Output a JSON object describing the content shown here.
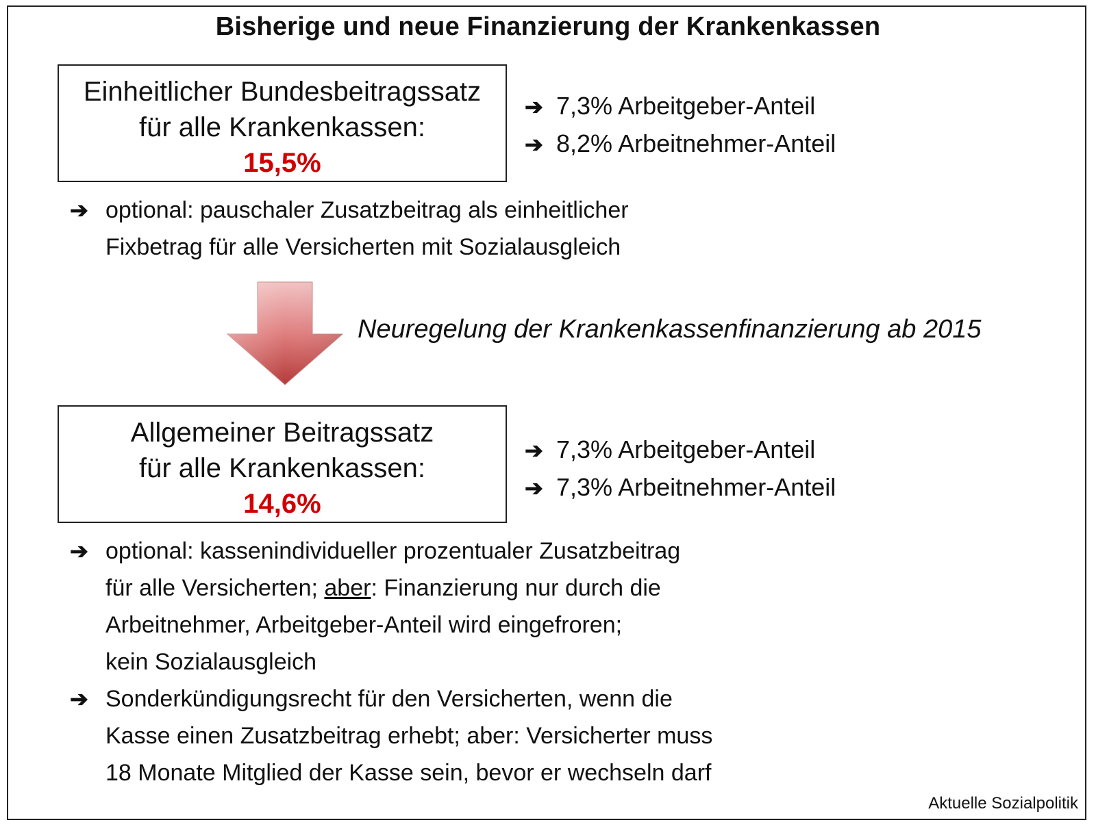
{
  "title": "Bisherige und neue Finanzierung der Krankenkassen",
  "old": {
    "box_line1": "Einheitlicher Bundesbeitragssatz",
    "box_line2": "für alle Krankenkassen:",
    "rate": "15,5%",
    "employer_share": "7,3% Arbeitgeber-Anteil",
    "employee_share": "8,2% Arbeitnehmer-Anteil",
    "note_line1": "optional: pauschaler Zusatzbeitrag als einheitlicher",
    "note_line2": "Fixbetrag für alle Versicherten mit Sozialausgleich"
  },
  "transition_label": "Neuregelung der Krankenkassenfinanzierung ab 2015",
  "new": {
    "box_line1": "Allgemeiner Beitragssatz",
    "box_line2": "für alle Krankenkassen:",
    "rate": "14,6%",
    "employer_share": "7,3% Arbeitgeber-Anteil",
    "employee_share": "7,3% Arbeitnehmer-Anteil",
    "note1_line1": "optional: kassenindividueller prozentualer Zusatzbeitrag",
    "note1_line2_pre": "für alle Versicherten; ",
    "note1_line2_underlined": "aber",
    "note1_line2_post": ": Finanzierung nur durch die",
    "note1_line3": "Arbeitnehmer, Arbeitgeber-Anteil wird eingefroren;",
    "note1_line4": "kein Sozialausgleich",
    "note2_line1": "Sonderkündigungsrecht für den Versicherten, wenn die",
    "note2_line2": "Kasse einen Zusatzbeitrag erhebt; aber: Versicherter muss",
    "note2_line3": "18 Monate Mitglied der Kasse sein, bevor er wechseln darf"
  },
  "arrow_glyph": "➔",
  "source": "Aktuelle Sozialpolitik",
  "colors": {
    "rate": "#d10000",
    "arrow_fill": "#d96b6b"
  }
}
